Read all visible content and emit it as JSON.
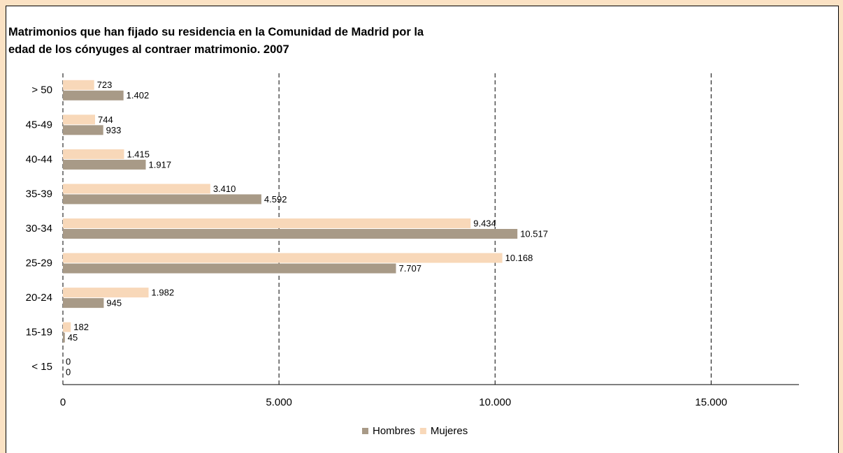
{
  "chart_data": {
    "type": "bar",
    "orientation": "horizontal",
    "title_lines": [
      "Matrimonios que han fijado su residencia en la Comunidad de Madrid por la",
      "edad de los cónyuges al contraer matrimonio. 2007"
    ],
    "categories": [
      "> 50",
      "45-49",
      "40-44",
      "35-39",
      "30-34",
      "25-29",
      "20-24",
      "15-19",
      "< 15"
    ],
    "series": [
      {
        "name": "Hombres",
        "color": "#a89a87",
        "values": [
          1402,
          933,
          1917,
          4592,
          10517,
          7707,
          945,
          45,
          0
        ],
        "value_labels": [
          "1.402",
          "933",
          "1.917",
          "4.592",
          "10.517",
          "7.707",
          "945",
          "45",
          "0"
        ]
      },
      {
        "name": "Mujeres",
        "color": "#f8d8b9",
        "values": [
          723,
          744,
          1415,
          3410,
          9434,
          10168,
          1982,
          182,
          0
        ],
        "value_labels": [
          "723",
          "744",
          "1.415",
          "3.410",
          "9.434",
          "10.168",
          "1.982",
          "182",
          "0"
        ]
      }
    ],
    "xlim": [
      0,
      17000
    ],
    "xticks": [
      0,
      {
        "value": 5000,
        "label": "5.000"
      },
      {
        "value": 10000,
        "label": "10.000"
      },
      {
        "value": 15000,
        "label": "15.000"
      }
    ],
    "grid": true,
    "legend": "bottom"
  }
}
